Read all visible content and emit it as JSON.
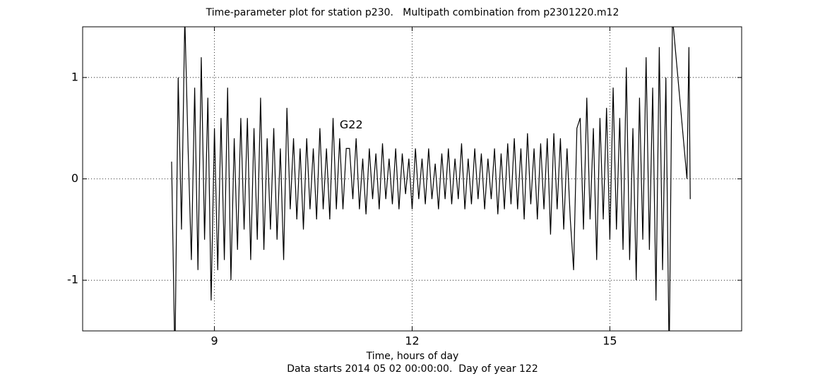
{
  "chart_data": {
    "type": "line",
    "title": "Time-parameter plot for station p230.   Multipath combination from p2301220.m12",
    "xlabel": [
      "Time, hours of day",
      "Data starts 2014 05 02 00:00:00.  Day of year 122"
    ],
    "xlim": [
      7,
      17
    ],
    "xticks": [
      9,
      12,
      15
    ],
    "ylim": [
      -1.5,
      1.5
    ],
    "yticks": [
      -1,
      0,
      1
    ],
    "grid": true,
    "annotations": [
      {
        "text": "G22",
        "x": 10.9,
        "y": 0.53
      }
    ],
    "series": [
      {
        "color": "#000000",
        "x": [
          8.35,
          8.4,
          8.45,
          8.5,
          8.55,
          8.6,
          8.65,
          8.7,
          8.75,
          8.8,
          8.85,
          8.9,
          8.95,
          9.0,
          9.05,
          9.1,
          9.15,
          9.2,
          9.25,
          9.3,
          9.35,
          9.4,
          9.45,
          9.5,
          9.55,
          9.6,
          9.65,
          9.7,
          9.75,
          9.8,
          9.85,
          9.9,
          9.95,
          10.0,
          10.05,
          10.1,
          10.15,
          10.2,
          10.25,
          10.3,
          10.35,
          10.4,
          10.45,
          10.5,
          10.55,
          10.6,
          10.65,
          10.7,
          10.75,
          10.8,
          10.85,
          10.9,
          10.95,
          11.0,
          11.05,
          11.1,
          11.15,
          11.2,
          11.25,
          11.3,
          11.35,
          11.4,
          11.45,
          11.5,
          11.55,
          11.6,
          11.65,
          11.7,
          11.75,
          11.8,
          11.85,
          11.9,
          11.95,
          12.0,
          12.05,
          12.1,
          12.15,
          12.2,
          12.25,
          12.3,
          12.35,
          12.4,
          12.45,
          12.5,
          12.55,
          12.6,
          12.65,
          12.7,
          12.75,
          12.8,
          12.85,
          12.9,
          12.95,
          13.0,
          13.05,
          13.1,
          13.15,
          13.2,
          13.25,
          13.3,
          13.35,
          13.4,
          13.45,
          13.5,
          13.55,
          13.6,
          13.65,
          13.7,
          13.75,
          13.8,
          13.85,
          13.9,
          13.95,
          14.0,
          14.05,
          14.1,
          14.15,
          14.2,
          14.25,
          14.3,
          14.35,
          14.4,
          14.45,
          14.5,
          14.55,
          14.6,
          14.65,
          14.7,
          14.75,
          14.8,
          14.85,
          14.9,
          14.95,
          15.0,
          15.05,
          15.1,
          15.15,
          15.2,
          15.25,
          15.3,
          15.35,
          15.4,
          15.45,
          15.5,
          15.55,
          15.6,
          15.65,
          15.7,
          15.75,
          15.8,
          15.85,
          15.9,
          15.95,
          16.17,
          16.2,
          16.22
        ],
        "values": [
          0.17,
          -1.8,
          1.0,
          -0.5,
          1.6,
          0.3,
          -0.8,
          0.9,
          -0.9,
          1.2,
          -0.6,
          0.8,
          -1.2,
          0.5,
          -0.9,
          0.6,
          -0.8,
          0.9,
          -1.0,
          0.4,
          -0.7,
          0.6,
          -0.5,
          0.6,
          -0.8,
          0.5,
          -0.6,
          0.8,
          -0.7,
          0.4,
          -0.5,
          0.5,
          -0.6,
          0.3,
          -0.8,
          0.7,
          -0.3,
          0.4,
          -0.4,
          0.3,
          -0.5,
          0.4,
          -0.3,
          0.3,
          -0.4,
          0.5,
          -0.3,
          0.3,
          -0.4,
          0.6,
          -0.3,
          0.4,
          -0.3,
          0.3,
          0.3,
          -0.2,
          0.4,
          -0.3,
          0.2,
          -0.35,
          0.3,
          -0.2,
          0.25,
          -0.3,
          0.35,
          -0.2,
          0.2,
          -0.25,
          0.3,
          -0.3,
          0.25,
          -0.15,
          0.2,
          -0.3,
          0.3,
          -0.2,
          0.2,
          -0.25,
          0.3,
          -0.2,
          0.15,
          -0.3,
          0.25,
          -0.2,
          0.3,
          -0.25,
          0.2,
          -0.2,
          0.35,
          -0.3,
          0.2,
          -0.25,
          0.3,
          -0.2,
          0.25,
          -0.3,
          0.2,
          -0.2,
          0.3,
          -0.35,
          0.25,
          -0.3,
          0.35,
          -0.25,
          0.4,
          -0.3,
          0.3,
          -0.4,
          0.45,
          -0.25,
          0.3,
          -0.4,
          0.35,
          -0.3,
          0.4,
          -0.55,
          0.45,
          -0.3,
          0.4,
          -0.5,
          0.3,
          -0.4,
          -0.9,
          0.5,
          0.6,
          -0.5,
          0.8,
          -0.4,
          0.5,
          -0.8,
          0.6,
          -0.4,
          0.7,
          -0.6,
          0.9,
          -0.5,
          0.6,
          -0.7,
          1.1,
          -0.8,
          0.5,
          -1.0,
          0.8,
          -0.6,
          1.2,
          -0.7,
          0.9,
          -1.2,
          1.3,
          -0.9,
          1.0,
          -1.8,
          1.6,
          0.0,
          1.3,
          -0.2
        ]
      }
    ]
  }
}
